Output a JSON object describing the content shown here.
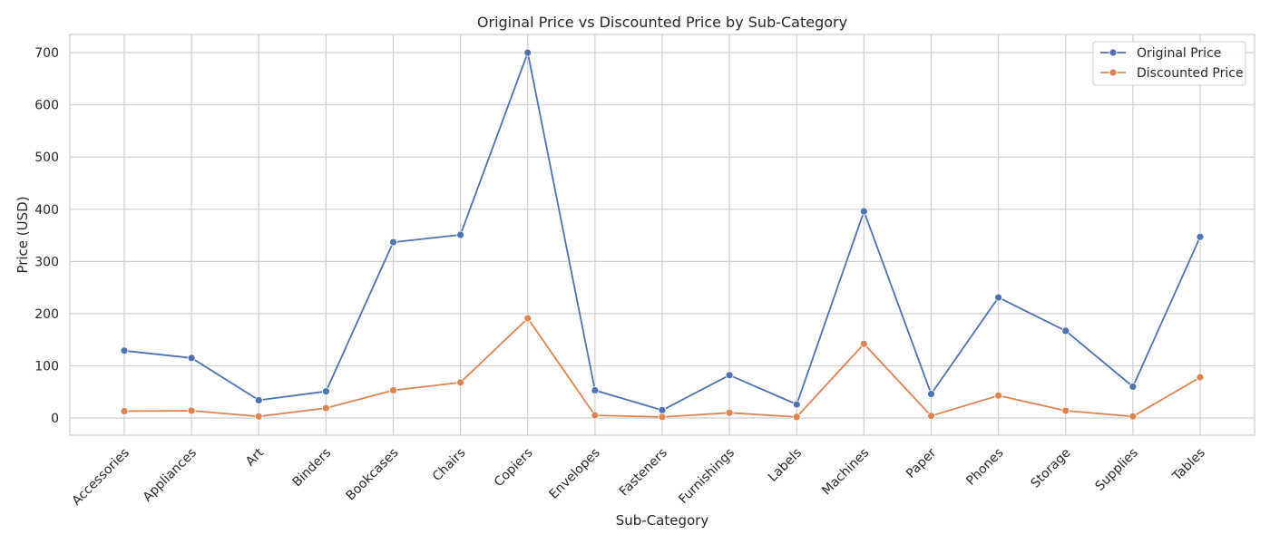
{
  "chart_data": {
    "type": "line",
    "title": "Original Price vs Discounted Price by Sub-Category",
    "xlabel": "Sub-Category",
    "ylabel": "Price (USD)",
    "ylim": [
      -33,
      735
    ],
    "yticks": [
      0,
      100,
      200,
      300,
      400,
      500,
      600,
      700
    ],
    "grid": true,
    "legend_position": "top-right",
    "categories": [
      "Accessories",
      "Appliances",
      "Art",
      "Binders",
      "Bookcases",
      "Chairs",
      "Copiers",
      "Envelopes",
      "Fasteners",
      "Furnishings",
      "Labels",
      "Machines",
      "Paper",
      "Phones",
      "Storage",
      "Supplies",
      "Tables"
    ],
    "series": [
      {
        "name": "Original Price",
        "color": "#4c72b0",
        "values": [
          129,
          115,
          34,
          51,
          337,
          351,
          700,
          53,
          15,
          82,
          26,
          396,
          46,
          231,
          167,
          60,
          347
        ]
      },
      {
        "name": "Discounted Price",
        "color": "#dd8452",
        "values": [
          13,
          14,
          3,
          19,
          53,
          68,
          191,
          5,
          2,
          10,
          2,
          142,
          4,
          43,
          14,
          3,
          78
        ]
      }
    ]
  }
}
